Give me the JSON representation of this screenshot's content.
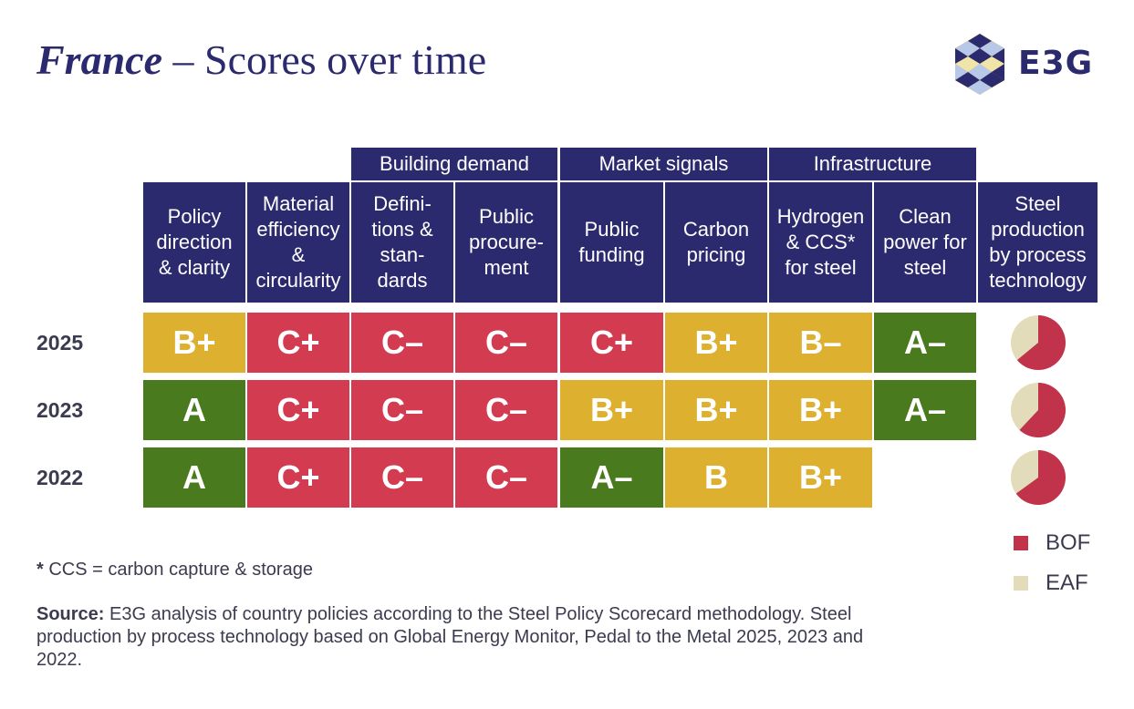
{
  "title": {
    "country": "France",
    "rest": " – Scores over time"
  },
  "logo": {
    "text": "E3G"
  },
  "groups": [
    "Building demand",
    "Market signals",
    "Infrastructure"
  ],
  "columns": [
    "Policy\ndirection\n& clarity",
    "Material\nefficiency\n&\ncircularity",
    "Defini-\ntions &\nstan-\ndards",
    "Public\nprocure-\nment",
    "Public\nfunding",
    "Carbon\npricing",
    "Hydrogen\n& CCS*\nfor steel",
    "Clean\npower for\nsteel",
    "Steel\nproduction\nby process\ntechnology"
  ],
  "chart_data": {
    "type": "table",
    "rows": [
      {
        "year": "2025",
        "grades": [
          "B+",
          "C+",
          "C–",
          "C–",
          "C+",
          "B+",
          "B–",
          "A–"
        ],
        "bof_share": 0.64
      },
      {
        "year": "2023",
        "grades": [
          "A",
          "C+",
          "C–",
          "C–",
          "B+",
          "B+",
          "B+",
          "A–"
        ],
        "bof_share": 0.62
      },
      {
        "year": "2022",
        "grades": [
          "A",
          "C+",
          "C–",
          "C–",
          "A–",
          "B",
          "B+",
          ""
        ],
        "bof_share": 0.65
      }
    ],
    "grade_colors": {
      "A": "#4a7a1e",
      "B": "#ddb030",
      "C": "#d23b50"
    },
    "legend": [
      {
        "name": "BOF",
        "color": "#c1324b"
      },
      {
        "name": "EAF",
        "color": "#e3dcba"
      }
    ]
  },
  "footnote": {
    "star": "*",
    "text": " CCS = carbon capture & storage"
  },
  "source": {
    "label": "Source:",
    "text": " E3G analysis of country policies according to the Steel Policy Scorecard methodology. Steel production by process technology based on Global Energy Monitor, Pedal to the Metal 2025, 2023 and 2022."
  }
}
